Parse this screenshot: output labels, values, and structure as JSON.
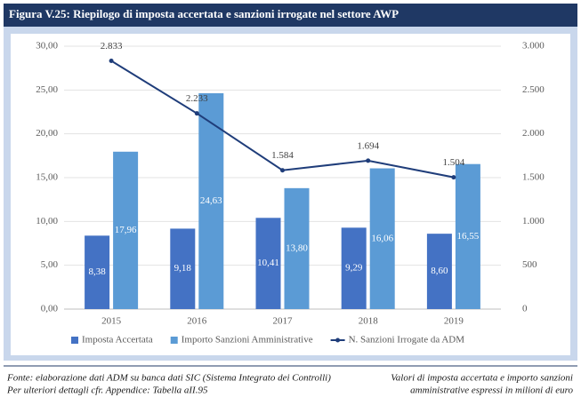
{
  "header": {
    "title": "Figura V.25: Riepilogo di imposta accertata e sanzioni irrogate nel settore AWP"
  },
  "chart_data": {
    "type": "bar",
    "categories": [
      "2015",
      "2016",
      "2017",
      "2018",
      "2019"
    ],
    "series": [
      {
        "name": "Imposta Accertata",
        "color": "#4472c4",
        "values": [
          8.38,
          9.18,
          10.41,
          9.29,
          8.6
        ],
        "value_labels": [
          "8,38",
          "9,18",
          "10,41",
          "9,29",
          "8,60"
        ]
      },
      {
        "name": "Importo Sanzioni Amministrative",
        "color": "#5b9bd5",
        "values": [
          17.96,
          24.63,
          13.8,
          16.06,
          16.55
        ],
        "value_labels": [
          "17,96",
          "24,63",
          "13,80",
          "16,06",
          "16,55"
        ]
      },
      {
        "name": "N. Sanzioni Irrogate da ADM",
        "type": "line",
        "axis": "y2",
        "color": "#1f3d7a",
        "values": [
          2833,
          2233,
          1584,
          1694,
          1504
        ],
        "value_labels": [
          "2.833",
          "2.233",
          "1.584",
          "1.694",
          "1.504"
        ]
      }
    ],
    "ylim": [
      0,
      30
    ],
    "yticks": [
      {
        "value": 0,
        "label": "0,00"
      },
      {
        "value": 5,
        "label": "5,00"
      },
      {
        "value": 10,
        "label": "10,00"
      },
      {
        "value": 15,
        "label": "15,00"
      },
      {
        "value": 20,
        "label": "20,00"
      },
      {
        "value": 25,
        "label": "25,00"
      },
      {
        "value": 30,
        "label": "30,00"
      }
    ],
    "y2lim": [
      0,
      3000
    ],
    "y2ticks": [
      0,
      500,
      {
        "value": 1000,
        "label": "1.000"
      },
      {
        "value": 1500,
        "label": "1.500"
      },
      {
        "value": 2000,
        "label": "2.000"
      },
      {
        "value": 2500,
        "label": "2.500"
      },
      {
        "value": 3000,
        "label": "3.000"
      }
    ],
    "grid": true,
    "legend": "bottom"
  },
  "footer": {
    "source_lines": [
      "Fonte: elaborazione dati ADM su banca dati SIC (Sistema Integrato dei Controlli)",
      "Per ulteriori dettagli cfr. Appendice: Tabella aII.95"
    ],
    "note_lines": [
      "Valori di imposta accertata e importo sanzioni",
      "amministrative espressi in milioni di euro"
    ]
  }
}
